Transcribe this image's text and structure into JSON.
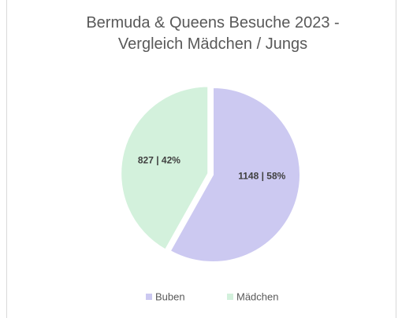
{
  "chart_data": {
    "type": "pie",
    "title": "Bermuda & Queens Besuche 2023 - Vergleich Mädchen / Jungs",
    "categories": [
      "Buben",
      "Mädchen"
    ],
    "values": [
      1148,
      827
    ],
    "value_labels": [
      "1148 | 58%",
      "827 | 42%"
    ],
    "colors": [
      "#ccc9f1",
      "#d3f1dc"
    ],
    "legend": "bottom"
  }
}
